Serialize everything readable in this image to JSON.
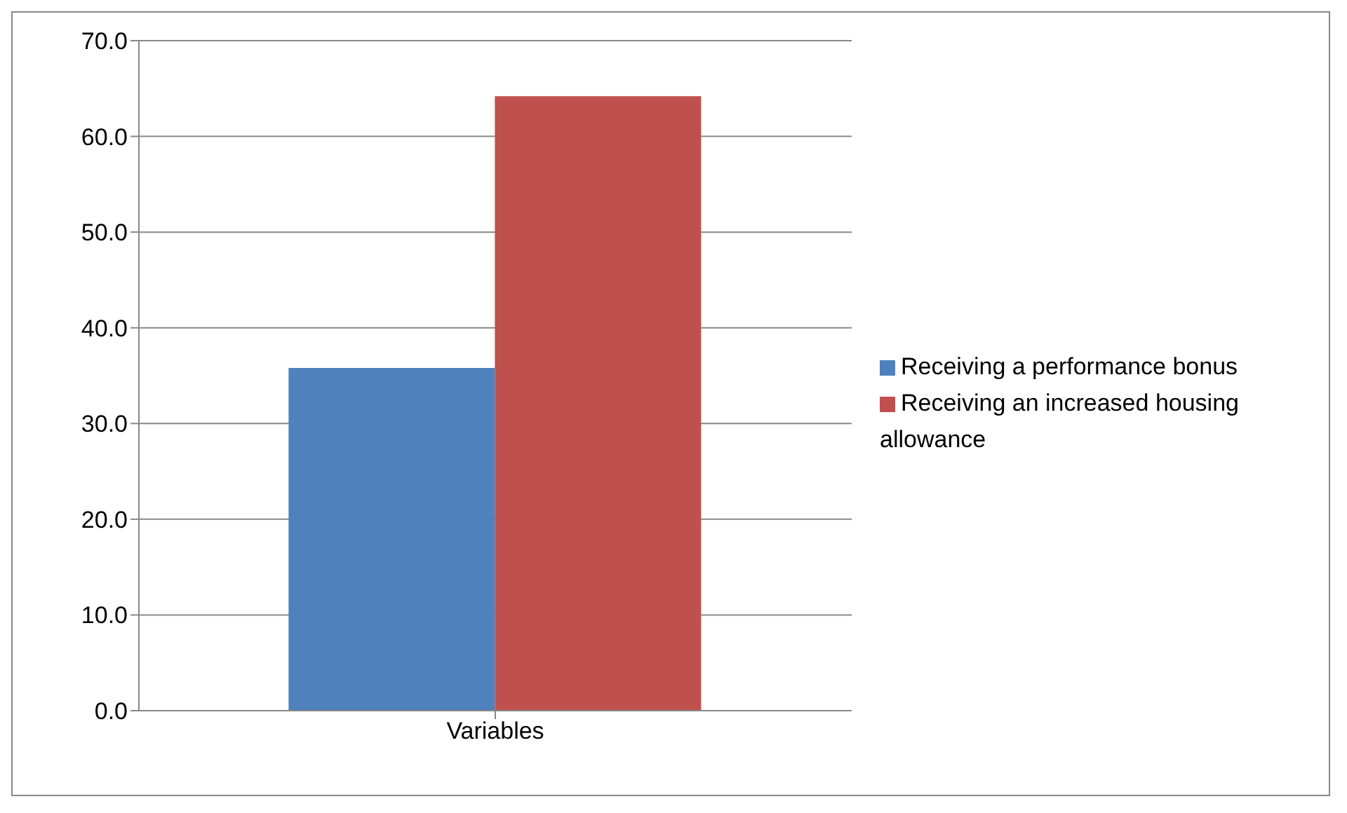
{
  "chart_data": {
    "type": "bar",
    "categories": [
      "Variables"
    ],
    "series": [
      {
        "name": "Receiving a performance bonus",
        "color": "#4f81bd",
        "values": [
          35.8
        ]
      },
      {
        "name": "Receiving an increased housing allowance",
        "color": "#c0504d",
        "values": [
          64.2
        ]
      }
    ],
    "ylim": [
      0,
      70
    ],
    "yticks": [
      {
        "value": 0,
        "label": "0.0"
      },
      {
        "value": 10,
        "label": "10.0"
      },
      {
        "value": 20,
        "label": "20.0"
      },
      {
        "value": 30,
        "label": "30.0"
      },
      {
        "value": 40,
        "label": "40.0"
      },
      {
        "value": 50,
        "label": "50.0"
      },
      {
        "value": 60,
        "label": "60.0"
      },
      {
        "value": 70,
        "label": "70.0"
      }
    ],
    "grid": "y",
    "legend": "right"
  }
}
